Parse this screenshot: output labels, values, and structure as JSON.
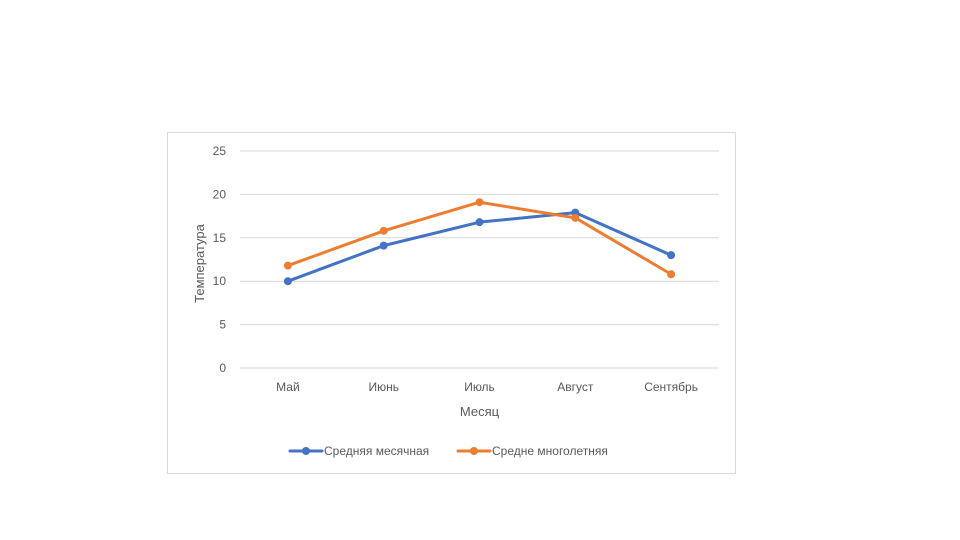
{
  "chart_data": {
    "type": "line",
    "title": "",
    "xlabel": "Месяц",
    "ylabel": "Температура",
    "categories": [
      "Май",
      "Июнь",
      "Июль",
      "Август",
      "Сентябрь"
    ],
    "ylim": [
      0,
      25
    ],
    "yticks": [
      0,
      5,
      10,
      15,
      20,
      25
    ],
    "grid": true,
    "legend_position": "bottom",
    "series": [
      {
        "name": "Средняя месячная",
        "color": "#4472c4",
        "values": [
          10,
          14.1,
          16.8,
          17.9,
          13
        ]
      },
      {
        "name": "Средне многолетняя",
        "color": "#ed7d31",
        "values": [
          11.8,
          15.8,
          19.1,
          17.3,
          10.8
        ]
      }
    ]
  }
}
